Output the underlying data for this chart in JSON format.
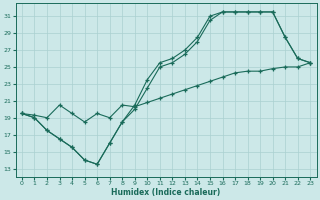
{
  "background_color": "#cce8e8",
  "grid_color": "#aad0d0",
  "line_color": "#1a6b5a",
  "xlabel": "Humidex (Indice chaleur)",
  "xlim": [
    -0.5,
    23.5
  ],
  "ylim": [
    12,
    32.5
  ],
  "yticks": [
    13,
    15,
    17,
    19,
    21,
    23,
    25,
    27,
    29,
    31
  ],
  "xticks": [
    0,
    1,
    2,
    3,
    4,
    5,
    6,
    7,
    8,
    9,
    10,
    11,
    12,
    13,
    14,
    15,
    16,
    17,
    18,
    19,
    20,
    21,
    22,
    23
  ],
  "curve1_x": [
    0,
    1,
    2,
    3,
    4,
    5,
    6,
    7,
    8,
    9,
    10,
    11,
    12,
    13,
    14,
    15,
    16,
    17,
    18,
    19,
    20,
    21,
    22,
    23
  ],
  "curve1_y": [
    19.5,
    19.0,
    17.5,
    16.5,
    15.5,
    14.0,
    13.5,
    16.0,
    18.5,
    20.5,
    23.5,
    25.5,
    26.0,
    27.0,
    28.5,
    31.0,
    31.5,
    31.5,
    31.5,
    31.5,
    31.5,
    28.5,
    26.0,
    25.5
  ],
  "curve2_x": [
    0,
    1,
    2,
    3,
    4,
    5,
    6,
    7,
    8,
    9,
    10,
    11,
    12,
    13,
    14,
    15,
    16,
    17,
    18,
    19,
    20,
    21,
    22,
    23
  ],
  "curve2_y": [
    19.5,
    19.0,
    17.5,
    16.5,
    15.5,
    14.0,
    13.5,
    16.0,
    18.5,
    20.0,
    22.5,
    25.0,
    25.5,
    26.5,
    28.0,
    30.5,
    31.5,
    31.5,
    31.5,
    31.5,
    31.5,
    28.5,
    26.0,
    25.5
  ],
  "diag_x": [
    0,
    1,
    2,
    3,
    4,
    5,
    6,
    7,
    8,
    9,
    10,
    11,
    12,
    13,
    14,
    15,
    16,
    17,
    18,
    19,
    20,
    21,
    22,
    23
  ],
  "diag_y": [
    19.5,
    19.3,
    19.0,
    20.5,
    19.5,
    18.5,
    19.5,
    19.0,
    20.5,
    20.3,
    20.8,
    21.3,
    21.8,
    22.3,
    22.8,
    23.3,
    23.8,
    24.3,
    24.5,
    24.5,
    24.8,
    25.0,
    25.0,
    25.5
  ]
}
